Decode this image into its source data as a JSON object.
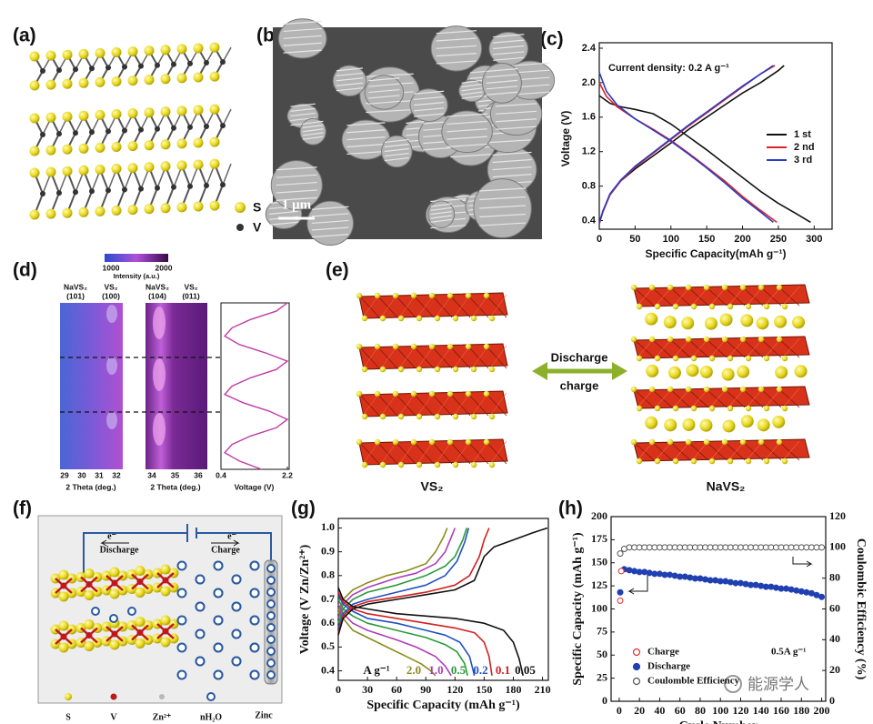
{
  "panel_labels": [
    "(a)",
    "(b)",
    "(c)",
    "(d)",
    "(e)",
    "(f)",
    "(g)",
    "(h)"
  ],
  "panel_a": {
    "legend": [
      "S",
      "V"
    ]
  },
  "panel_b": {
    "scale_bar": "1 μm"
  },
  "panel_d": {
    "colorbar_ticks": [
      1000,
      2000
    ],
    "colorbar_label": "Intensity (a.u.)",
    "columns": [
      [
        "NaVS₂",
        "(101)"
      ],
      [
        "VS₂",
        "(100)"
      ],
      [
        "NaVS₂",
        "(104)"
      ],
      [
        "VS₂",
        "(011)"
      ]
    ],
    "heatmap_1_ticks": [
      29,
      30,
      31,
      32
    ],
    "heatmap_2_ticks": [
      34,
      35,
      36
    ],
    "xlabel": "2 Theta (deg.)"
  },
  "panel_e": {
    "arrow_top": "Discharge",
    "arrow_bottom": "charge",
    "left_label": "VS₂",
    "right_label": "NaVS₂"
  },
  "panel_f": {
    "left_electron": "e⁻",
    "left_arrow": "Discharge",
    "right_electron": "e⁻",
    "right_arrow": "Charge",
    "legend": [
      "S",
      "V",
      "Zn²⁺",
      "nH₂O",
      "Zinc"
    ]
  },
  "watermark": "能源学人",
  "chart_data": [
    {
      "type": "line",
      "annotation": "Current density: 0.2 A g⁻¹",
      "xlabel": "Specific Capacity(mAh g⁻¹)",
      "ylabel": "Voltage (V)",
      "xlim": [
        0,
        325
      ],
      "ylim": [
        0.3,
        2.4
      ],
      "xticks": [
        0,
        50,
        100,
        150,
        200,
        250,
        300
      ],
      "yticks": [
        0.4,
        0.8,
        1.2,
        1.6,
        {
          "value": 2,
          "label": "2.0"
        },
        2.4
      ],
      "legend": "center right",
      "series": [
        {
          "name": "1 st",
          "color": "#111111",
          "x": [
            0,
            15,
            30,
            50,
            75,
            100,
            125,
            150,
            175,
            200,
            225,
            250,
            275,
            295,
            null,
            0,
            5,
            15,
            30,
            50,
            75,
            100,
            125,
            150,
            175,
            200,
            225,
            250,
            258
          ],
          "values": [
            1.85,
            1.76,
            1.72,
            1.69,
            1.64,
            1.52,
            1.37,
            1.22,
            1.06,
            0.9,
            0.74,
            0.6,
            0.48,
            0.38,
            null,
            0.38,
            0.5,
            0.7,
            0.86,
            1.0,
            1.15,
            1.3,
            1.46,
            1.6,
            1.74,
            1.88,
            2.0,
            2.14,
            2.2
          ]
        },
        {
          "name": "2 nd",
          "color": "#e0202a",
          "x": [
            0,
            10,
            25,
            50,
            75,
            100,
            125,
            150,
            175,
            200,
            225,
            248,
            null,
            0,
            5,
            15,
            30,
            50,
            75,
            100,
            125,
            150,
            175,
            200,
            225,
            245
          ],
          "values": [
            2.0,
            1.84,
            1.72,
            1.58,
            1.46,
            1.33,
            1.18,
            1.02,
            0.86,
            0.68,
            0.52,
            0.38,
            null,
            0.36,
            0.5,
            0.7,
            0.86,
            1.02,
            1.18,
            1.34,
            1.5,
            1.65,
            1.8,
            1.95,
            2.1,
            2.2
          ]
        },
        {
          "name": "3 rd",
          "color": "#2a3cc0",
          "x": [
            0,
            10,
            25,
            50,
            75,
            100,
            125,
            150,
            175,
            200,
            225,
            243,
            null,
            0,
            5,
            15,
            30,
            50,
            75,
            100,
            125,
            150,
            175,
            200,
            225,
            243
          ],
          "values": [
            2.12,
            1.9,
            1.74,
            1.58,
            1.45,
            1.32,
            1.17,
            1.01,
            0.84,
            0.66,
            0.5,
            0.38,
            null,
            0.37,
            0.51,
            0.71,
            0.87,
            1.03,
            1.19,
            1.35,
            1.51,
            1.66,
            1.81,
            1.96,
            2.1,
            2.2
          ]
        }
      ]
    },
    {
      "type": "profile",
      "xlabel": "Voltage (V)",
      "xlim": [
        0.4,
        2.2
      ],
      "xticks": [
        0.4,
        2.2
      ],
      "color": "#c03ca8",
      "values": [
        2.2,
        1.9,
        1.2,
        0.7,
        0.5,
        0.9,
        1.6,
        2.2,
        1.9,
        1.2,
        0.7,
        0.5,
        1.0,
        1.7,
        2.2,
        1.9,
        1.2,
        0.7,
        0.5,
        0.9,
        1.5
      ]
    },
    {
      "type": "line",
      "xlabel": "Specific Capacity (mAh g⁻¹)",
      "ylabel": "Voltage (V  Zn/Zn²⁺)",
      "xlim": [
        0,
        216
      ],
      "ylim": [
        0.36,
        1.04
      ],
      "xticks": [
        0,
        30,
        60,
        90,
        120,
        150,
        180,
        210
      ],
      "yticks": [
        0.4,
        0.5,
        0.6,
        0.7,
        0.8,
        0.9,
        {
          "value": 1,
          "label": "1.0"
        }
      ],
      "legend": "bottom",
      "legend_title": "A g⁻¹",
      "series": [
        {
          "name": "2.0",
          "color": "#8c8c1e",
          "x": [
            0,
            5,
            15,
            30,
            50,
            70,
            85,
            95,
            100,
            null,
            0,
            5,
            15,
            30,
            50,
            70,
            90,
            100,
            108,
            112
          ],
          "values": [
            0.66,
            0.62,
            0.57,
            0.54,
            0.5,
            0.46,
            0.43,
            0.4,
            0.38,
            null,
            0.64,
            0.7,
            0.74,
            0.77,
            0.8,
            0.82,
            0.85,
            0.9,
            0.96,
            1.0
          ]
        },
        {
          "name": "1.0",
          "color": "#b03cb8",
          "x": [
            0,
            5,
            15,
            30,
            60,
            80,
            100,
            110,
            116,
            null,
            0,
            5,
            15,
            30,
            60,
            80,
            100,
            110,
            116,
            120
          ],
          "values": [
            0.68,
            0.64,
            0.6,
            0.57,
            0.53,
            0.5,
            0.46,
            0.42,
            0.38,
            null,
            0.62,
            0.68,
            0.72,
            0.75,
            0.79,
            0.81,
            0.85,
            0.9,
            0.96,
            1.0
          ]
        },
        {
          "name": "0.5",
          "color": "#2a9a3a",
          "x": [
            0,
            5,
            15,
            30,
            60,
            90,
            110,
            122,
            130,
            133,
            null,
            0,
            5,
            15,
            30,
            60,
            90,
            110,
            120,
            128,
            132
          ],
          "values": [
            0.7,
            0.66,
            0.63,
            0.6,
            0.57,
            0.54,
            0.51,
            0.48,
            0.43,
            0.38,
            null,
            0.6,
            0.66,
            0.7,
            0.73,
            0.76,
            0.8,
            0.84,
            0.88,
            0.95,
            1.0
          ]
        },
        {
          "name": "0.2",
          "color": "#2050c0",
          "x": [
            0,
            5,
            15,
            30,
            60,
            90,
            110,
            125,
            135,
            140,
            null,
            0,
            5,
            15,
            30,
            60,
            90,
            110,
            122,
            130,
            134
          ],
          "values": [
            0.72,
            0.68,
            0.65,
            0.62,
            0.6,
            0.57,
            0.55,
            0.52,
            0.46,
            0.38,
            null,
            0.58,
            0.64,
            0.68,
            0.7,
            0.73,
            0.76,
            0.8,
            0.86,
            0.94,
            1.0
          ]
        },
        {
          "name": "0.1",
          "color": "#d42020",
          "x": [
            0,
            5,
            15,
            30,
            60,
            90,
            120,
            140,
            150,
            155,
            158,
            null,
            0,
            5,
            15,
            30,
            60,
            90,
            120,
            135,
            145,
            150,
            155
          ],
          "values": [
            0.73,
            0.69,
            0.66,
            0.64,
            0.62,
            0.6,
            0.58,
            0.56,
            0.52,
            0.46,
            0.38,
            null,
            0.56,
            0.63,
            0.67,
            0.69,
            0.71,
            0.73,
            0.76,
            0.8,
            0.88,
            0.95,
            1.0
          ]
        },
        {
          "name": "0.05",
          "color": "#111111",
          "x": [
            0,
            5,
            15,
            30,
            60,
            90,
            120,
            150,
            170,
            180,
            186,
            190,
            null,
            0,
            5,
            15,
            30,
            60,
            90,
            120,
            140,
            150,
            160,
            180,
            200,
            215
          ],
          "values": [
            0.75,
            0.7,
            0.67,
            0.66,
            0.64,
            0.63,
            0.62,
            0.6,
            0.57,
            0.52,
            0.45,
            0.38,
            null,
            0.55,
            0.62,
            0.66,
            0.68,
            0.7,
            0.72,
            0.74,
            0.78,
            0.88,
            0.92,
            0.95,
            0.98,
            1.0
          ]
        }
      ]
    },
    {
      "type": "scatter",
      "xlabel": "Cycle Number",
      "ylabel": "Specific Capacity (mAh g⁻¹)",
      "y2label": "Coulombic Efficiency (%)",
      "annotation": "0.5A g⁻¹",
      "xlim": [
        -8,
        204
      ],
      "ylim": [
        0,
        200
      ],
      "y2lim": [
        0,
        120
      ],
      "xticks": [
        0,
        20,
        40,
        60,
        80,
        100,
        120,
        140,
        160,
        180,
        200
      ],
      "yticks": [
        0,
        25,
        50,
        75,
        100,
        125,
        150,
        175,
        200
      ],
      "y2ticks": [
        0,
        20,
        40,
        60,
        80,
        100,
        120
      ],
      "legend": "lower left",
      "series": [
        {
          "name": "Charge",
          "color": "#e03030",
          "filled": false,
          "x": [
            1,
            2
          ],
          "values": [
            109,
            141
          ]
        },
        {
          "name": "Discharge",
          "color": "#2040b0",
          "filled": true,
          "x": [
            1,
            5,
            10,
            15,
            20,
            25,
            30,
            35,
            40,
            45,
            50,
            55,
            60,
            65,
            70,
            75,
            80,
            85,
            90,
            95,
            100,
            105,
            110,
            115,
            120,
            125,
            130,
            135,
            140,
            145,
            150,
            155,
            160,
            165,
            170,
            175,
            180,
            185,
            190,
            195,
            200
          ],
          "values": [
            118,
            143,
            142,
            141,
            140,
            140,
            139,
            138,
            138,
            137,
            137,
            136,
            135,
            135,
            134,
            133,
            133,
            132,
            131,
            131,
            130,
            130,
            129,
            128,
            128,
            127,
            126,
            126,
            125,
            124,
            124,
            123,
            122,
            122,
            121,
            120,
            119,
            118,
            117,
            115,
            113
          ]
        },
        {
          "name": "Coulomble Efficiency",
          "color": "#555555",
          "filled": false,
          "axis": "y2",
          "x": [
            1,
            5,
            10,
            15,
            20,
            25,
            30,
            35,
            40,
            45,
            50,
            55,
            60,
            65,
            70,
            75,
            80,
            85,
            90,
            95,
            100,
            105,
            110,
            115,
            120,
            125,
            130,
            135,
            140,
            145,
            150,
            155,
            160,
            165,
            170,
            175,
            180,
            185,
            190,
            195,
            200
          ],
          "values": [
            96,
            99,
            100,
            100,
            100,
            100,
            100,
            100,
            100,
            100,
            100,
            100,
            100,
            100,
            100,
            100,
            100,
            100,
            100,
            100,
            100,
            100,
            100,
            100,
            100,
            100,
            100,
            100,
            100,
            100,
            100,
            100,
            100,
            100,
            100,
            100,
            100,
            100,
            100,
            100,
            100
          ]
        }
      ]
    }
  ]
}
